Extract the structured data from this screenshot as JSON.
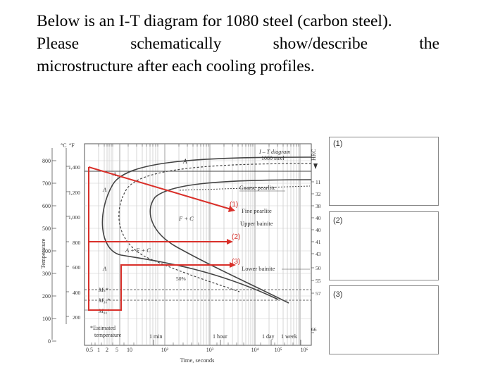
{
  "question": {
    "line1": "Below is an I-T diagram for 1080 steel (carbon steel).",
    "line2_words": [
      "Please",
      "schematically",
      "show/describe",
      "the"
    ],
    "line3": "microstructure after each cooling profiles."
  },
  "diagram": {
    "unit_c": "°C",
    "unit_f": "°F",
    "c_ticks": [
      "800",
      "700",
      "600",
      "500",
      "400",
      "300",
      "200",
      "100",
      "0"
    ],
    "f_ticks": [
      "1,400",
      "1,200",
      "1,000",
      "800",
      "600",
      "400",
      "200"
    ],
    "y_label": "Temperature",
    "x_ticks": [
      "0.5",
      "1",
      "2",
      "5",
      "10",
      "10²",
      "10³",
      "10⁴",
      "10⁵",
      "10⁶"
    ],
    "x_label": "Time, seconds",
    "time_marks": [
      "1 min",
      "1 hour",
      "1 day",
      "1 week"
    ],
    "title_line1": "I – T diagram",
    "title_line2": "1080 steel",
    "region_A": "A",
    "region_A1": "A₁",
    "region_A_upper": "A",
    "region_A_lower": "A",
    "region_FC": "F + C",
    "region_AFC": "A + F + C",
    "pct50": "50%",
    "coarse": "Coarse pearlite",
    "fine": "Fine pearlite",
    "upper": "Upper bainite",
    "lower": "Lower bainite",
    "ms": "Mₛ*",
    "m50": "M₅₀*",
    "m90": "M₉₀*",
    "est1": "*Estimated",
    "est2": "temperature",
    "hrc_label": "HRC",
    "hrc_vals": [
      "11",
      "32",
      "38",
      "40",
      "40",
      "41",
      "43",
      "50",
      "55",
      "57",
      "66"
    ],
    "profile1": "(1)",
    "profile2": "(2)",
    "profile3": "(3)",
    "profile_color": "#d9302a"
  },
  "answer_boxes": [
    "(1)",
    "(2)",
    "(3)"
  ]
}
